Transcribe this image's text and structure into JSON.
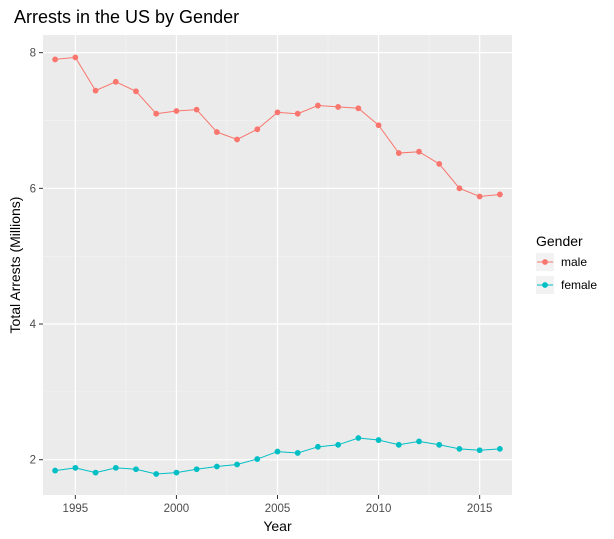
{
  "chart_data": {
    "type": "line",
    "title": "Arrests in the US by Gender",
    "xlabel": "Year",
    "ylabel": "Total Arrests (Millions)",
    "x": [
      1994,
      1995,
      1996,
      1997,
      1998,
      1999,
      2000,
      2001,
      2002,
      2003,
      2004,
      2005,
      2006,
      2007,
      2008,
      2009,
      2010,
      2011,
      2012,
      2013,
      2014,
      2015,
      2016
    ],
    "series": [
      {
        "name": "male",
        "color": "#F8766D",
        "values": [
          7.9,
          7.93,
          7.44,
          7.57,
          7.43,
          7.1,
          7.14,
          7.16,
          6.83,
          6.72,
          6.87,
          7.12,
          7.1,
          7.22,
          7.2,
          7.18,
          6.93,
          6.52,
          6.54,
          6.36,
          6.0,
          5.88,
          5.91
        ]
      },
      {
        "name": "female",
        "color": "#00BFC4",
        "values": [
          1.84,
          1.88,
          1.81,
          1.88,
          1.86,
          1.79,
          1.81,
          1.86,
          1.9,
          1.93,
          2.01,
          2.12,
          2.1,
          2.19,
          2.22,
          2.32,
          2.29,
          2.22,
          2.27,
          2.22,
          2.16,
          2.14,
          2.16
        ]
      }
    ],
    "xlim": [
      1993.4,
      2016.6
    ],
    "ylim": [
      1.48,
      8.26
    ],
    "x_ticks": [
      1995,
      2000,
      2005,
      2010,
      2015
    ],
    "x_tick_labels": [
      "1995",
      "2000",
      "2005",
      "2010",
      "2015"
    ],
    "y_ticks": [
      2,
      4,
      6,
      8
    ],
    "y_tick_labels": [
      "2",
      "4",
      "6",
      "8"
    ],
    "grid": true,
    "panel_background": "#EBEBEB",
    "legend": {
      "title": "Gender",
      "placement": "right",
      "labels": [
        "male",
        "female"
      ]
    }
  }
}
